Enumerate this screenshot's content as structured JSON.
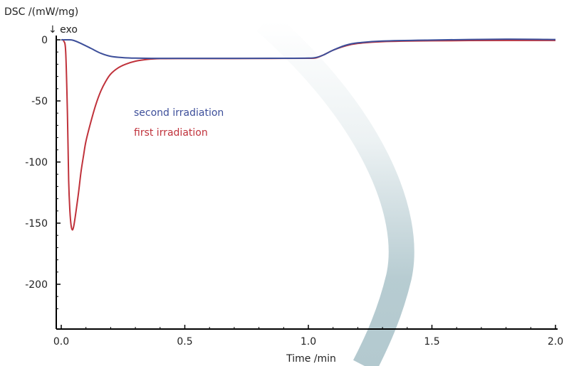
{
  "chart_data": {
    "type": "line",
    "title": "",
    "xlabel": "Time /min",
    "ylabel": "DSC /(mW/mg)",
    "annotation": "↓ exo",
    "xlim": [
      0,
      2.0
    ],
    "ylim": [
      -230,
      3
    ],
    "xticks": [
      0.0,
      0.5,
      1.0,
      1.5,
      2.0
    ],
    "xtick_labels": [
      "0.0",
      "0.5",
      "1.0",
      "1.5",
      "2.0"
    ],
    "yticks": [
      0,
      -50,
      -100,
      -150,
      -200
    ],
    "ytick_labels": [
      "0",
      "-50",
      "-100",
      "-150",
      "-200"
    ],
    "grid": false,
    "series": [
      {
        "name": "second irradiation",
        "color": "#3d4f9a",
        "x": [
          0.0,
          0.03,
          0.05,
          0.08,
          0.12,
          0.16,
          0.2,
          0.25,
          0.3,
          0.4,
          0.5,
          0.7,
          0.9,
          1.0,
          1.03,
          1.06,
          1.1,
          1.15,
          1.2,
          1.3,
          1.5,
          1.8,
          2.0
        ],
        "y": [
          0.0,
          0.0,
          -0.5,
          -3,
          -7,
          -11,
          -13.5,
          -14.6,
          -15,
          -15.2,
          -15.2,
          -15.2,
          -15.1,
          -15.0,
          -14.5,
          -12.5,
          -8.5,
          -4.5,
          -2.5,
          -1.0,
          -0.2,
          0.5,
          0.2
        ]
      },
      {
        "name": "first irradiation",
        "color": "#c0323b",
        "x": [
          0.0,
          0.01,
          0.018,
          0.025,
          0.03,
          0.035,
          0.04,
          0.045,
          0.05,
          0.055,
          0.06,
          0.07,
          0.08,
          0.09,
          0.1,
          0.12,
          0.14,
          0.16,
          0.18,
          0.2,
          0.23,
          0.26,
          0.3,
          0.35,
          0.4,
          0.5,
          0.7,
          0.9,
          1.0,
          1.03,
          1.06,
          1.1,
          1.15,
          1.2,
          1.3,
          1.5,
          1.8,
          2.0
        ],
        "y": [
          0.0,
          -1.0,
          -10,
          -60,
          -115,
          -140,
          -152,
          -155.5,
          -153,
          -147,
          -140,
          -125,
          -108,
          -95,
          -83,
          -67,
          -53,
          -42,
          -34,
          -28,
          -23,
          -20,
          -17.5,
          -16,
          -15.4,
          -15.3,
          -15.3,
          -15.2,
          -15.1,
          -14.8,
          -12.5,
          -8.5,
          -5.0,
          -3.0,
          -1.5,
          -0.8,
          -0.5,
          -0.5
        ]
      }
    ],
    "legend": {
      "placement": "center-left",
      "entries": [
        "second irradiation",
        "first irradiation"
      ]
    },
    "decoration_color": "#b3c9cf"
  }
}
